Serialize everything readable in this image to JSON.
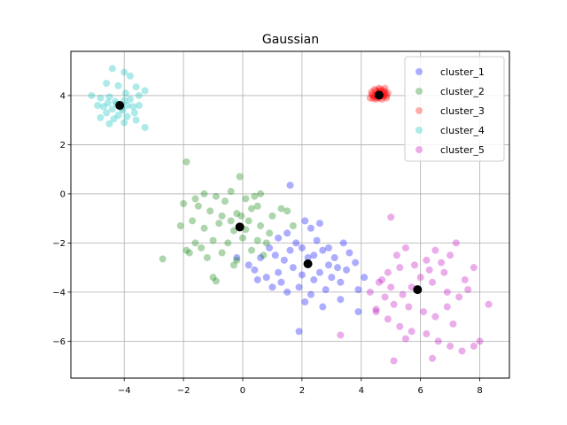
{
  "chart_data": {
    "type": "scatter",
    "title": "Gaussian",
    "xlabel": "",
    "ylabel": "",
    "xlim": [
      -5.8,
      9.0
    ],
    "ylim": [
      -7.5,
      5.8
    ],
    "xticks": [
      -4,
      -2,
      0,
      2,
      4,
      6,
      8
    ],
    "yticks": [
      -6,
      -4,
      -2,
      0,
      2,
      4
    ],
    "xtick_labels": [
      "−4",
      "−2",
      "0",
      "2",
      "4",
      "6",
      "8"
    ],
    "ytick_labels": [
      "−6",
      "−4",
      "−2",
      "0",
      "2",
      "4"
    ],
    "grid": true,
    "legend": "top-right",
    "series": [
      {
        "name": "cluster_1",
        "color": "#0000ff",
        "centroid": [
          2.2,
          -2.85
        ],
        "points": [
          [
            1.6,
            0.35
          ],
          [
            2.1,
            -1.1
          ],
          [
            2.3,
            -1.4
          ],
          [
            1.2,
            -1.8
          ],
          [
            1.5,
            -1.6
          ],
          [
            1.8,
            -2.0
          ],
          [
            2.0,
            -2.2
          ],
          [
            2.5,
            -1.9
          ],
          [
            2.7,
            -2.3
          ],
          [
            3.1,
            -2.6
          ],
          [
            3.4,
            -2.0
          ],
          [
            3.6,
            -2.4
          ],
          [
            3.2,
            -3.0
          ],
          [
            2.9,
            -2.9
          ],
          [
            2.6,
            -3.2
          ],
          [
            2.4,
            -3.5
          ],
          [
            2.0,
            -3.3
          ],
          [
            1.7,
            -3.0
          ],
          [
            1.4,
            -2.7
          ],
          [
            1.1,
            -2.5
          ],
          [
            0.9,
            -2.2
          ],
          [
            0.6,
            -2.6
          ],
          [
            0.4,
            -3.1
          ],
          [
            0.8,
            -3.4
          ],
          [
            1.3,
            -3.6
          ],
          [
            1.9,
            -3.8
          ],
          [
            2.3,
            -4.1
          ],
          [
            2.8,
            -3.9
          ],
          [
            3.0,
            -3.4
          ],
          [
            3.5,
            -3.1
          ],
          [
            3.8,
            -2.8
          ],
          [
            4.1,
            -3.4
          ],
          [
            3.9,
            -3.9
          ],
          [
            3.3,
            -4.3
          ],
          [
            2.7,
            -4.6
          ],
          [
            2.1,
            -4.4
          ],
          [
            1.5,
            -4.0
          ],
          [
            1.0,
            -3.8
          ],
          [
            0.5,
            -3.5
          ],
          [
            0.2,
            -2.9
          ],
          [
            -0.2,
            -2.6
          ],
          [
            2.6,
            -1.2
          ],
          [
            1.9,
            -5.6
          ],
          [
            3.9,
            -4.8
          ],
          [
            2.2,
            -2.6
          ],
          [
            2.4,
            -2.5
          ],
          [
            1.6,
            -2.3
          ],
          [
            2.9,
            -2.2
          ],
          [
            3.3,
            -3.6
          ],
          [
            1.2,
            -3.2
          ]
        ]
      },
      {
        "name": "cluster_2",
        "color": "#008000",
        "centroid": [
          -0.1,
          -1.35
        ],
        "points": [
          [
            -1.9,
            1.3
          ],
          [
            -0.1,
            0.7
          ],
          [
            -2.0,
            -0.4
          ],
          [
            -1.6,
            -0.2
          ],
          [
            -1.3,
            0.0
          ],
          [
            -0.9,
            -0.1
          ],
          [
            -0.6,
            -0.3
          ],
          [
            -0.4,
            0.1
          ],
          [
            0.1,
            -0.2
          ],
          [
            0.4,
            -0.1
          ],
          [
            0.6,
            0.0
          ],
          [
            0.3,
            -0.6
          ],
          [
            -0.2,
            -0.8
          ],
          [
            -0.7,
            -0.9
          ],
          [
            -1.1,
            -0.7
          ],
          [
            -1.5,
            -0.5
          ],
          [
            -1.7,
            -1.1
          ],
          [
            -1.3,
            -1.4
          ],
          [
            -0.8,
            -1.2
          ],
          [
            -0.3,
            -1.5
          ],
          [
            0.2,
            -1.1
          ],
          [
            0.6,
            -1.3
          ],
          [
            1.0,
            -0.9
          ],
          [
            1.3,
            -0.6
          ],
          [
            0.9,
            -1.6
          ],
          [
            0.5,
            -1.9
          ],
          [
            0.0,
            -1.8
          ],
          [
            -0.5,
            -2.0
          ],
          [
            -1.0,
            -1.9
          ],
          [
            -1.4,
            -2.2
          ],
          [
            -1.8,
            -2.4
          ],
          [
            -1.2,
            -2.6
          ],
          [
            -0.7,
            -2.4
          ],
          [
            -0.2,
            -2.7
          ],
          [
            0.3,
            -2.3
          ],
          [
            0.7,
            -2.5
          ],
          [
            -2.7,
            -2.65
          ],
          [
            -1.0,
            -3.4
          ],
          [
            -0.9,
            -3.55
          ],
          [
            -0.3,
            -2.9
          ],
          [
            1.5,
            -0.7
          ],
          [
            1.7,
            -1.3
          ],
          [
            -0.4,
            -1.1
          ],
          [
            0.1,
            -1.45
          ],
          [
            -1.9,
            -2.3
          ],
          [
            0.8,
            -2.0
          ],
          [
            -2.1,
            -1.3
          ],
          [
            -0.05,
            -0.9
          ],
          [
            -1.6,
            -2.0
          ],
          [
            0.5,
            -0.5
          ]
        ]
      },
      {
        "name": "cluster_3",
        "color": "#ff0000",
        "centroid": [
          4.6,
          4.02
        ],
        "points": [
          [
            4.35,
            4.15
          ],
          [
            4.45,
            3.95
          ],
          [
            4.5,
            4.2
          ],
          [
            4.55,
            4.05
          ],
          [
            4.6,
            3.9
          ],
          [
            4.65,
            4.25
          ],
          [
            4.7,
            4.1
          ],
          [
            4.75,
            3.95
          ],
          [
            4.8,
            4.15
          ],
          [
            4.85,
            4.0
          ],
          [
            4.4,
            4.0
          ],
          [
            4.5,
            3.85
          ],
          [
            4.6,
            4.3
          ],
          [
            4.7,
            3.85
          ],
          [
            4.8,
            4.3
          ],
          [
            4.3,
            3.9
          ],
          [
            4.9,
            4.1
          ],
          [
            4.55,
            4.15
          ],
          [
            4.65,
            3.98
          ],
          [
            4.45,
            4.25
          ],
          [
            4.75,
            4.2
          ],
          [
            4.35,
            4.05
          ],
          [
            4.85,
            3.9
          ],
          [
            4.6,
            4.1
          ],
          [
            4.5,
            4.0
          ],
          [
            4.7,
            4.0
          ],
          [
            4.4,
            3.88
          ],
          [
            4.8,
            4.05
          ],
          [
            4.55,
            3.92
          ],
          [
            4.65,
            4.18
          ]
        ]
      },
      {
        "name": "cluster_4",
        "color": "#00bfbf",
        "centroid": [
          -4.15,
          3.6
        ],
        "points": [
          [
            -4.4,
            5.1
          ],
          [
            -4.0,
            4.95
          ],
          [
            -3.8,
            4.8
          ],
          [
            -4.6,
            4.5
          ],
          [
            -4.2,
            4.4
          ],
          [
            -3.6,
            4.35
          ],
          [
            -5.1,
            4.0
          ],
          [
            -4.8,
            3.9
          ],
          [
            -4.5,
            3.95
          ],
          [
            -3.3,
            4.2
          ],
          [
            -3.5,
            4.0
          ],
          [
            -4.3,
            3.75
          ],
          [
            -4.0,
            3.8
          ],
          [
            -3.9,
            3.6
          ],
          [
            -4.1,
            3.5
          ],
          [
            -4.4,
            3.45
          ],
          [
            -4.7,
            3.55
          ],
          [
            -3.7,
            3.55
          ],
          [
            -3.5,
            3.6
          ],
          [
            -4.6,
            3.3
          ],
          [
            -4.2,
            3.2
          ],
          [
            -3.9,
            3.15
          ],
          [
            -4.8,
            3.1
          ],
          [
            -3.6,
            3.0
          ],
          [
            -4.0,
            2.9
          ],
          [
            -4.5,
            2.85
          ],
          [
            -3.3,
            2.7
          ],
          [
            -4.9,
            3.6
          ],
          [
            -4.25,
            3.65
          ],
          [
            -4.05,
            3.4
          ],
          [
            -3.8,
            3.85
          ],
          [
            -4.55,
            3.7
          ],
          [
            -3.95,
            4.1
          ],
          [
            -4.35,
            3.05
          ],
          [
            -3.65,
            3.3
          ]
        ]
      },
      {
        "name": "cluster_5",
        "color": "#bf00bf",
        "centroid": [
          5.9,
          -3.9
        ],
        "points": [
          [
            5.0,
            -0.95
          ],
          [
            5.5,
            -2.2
          ],
          [
            6.5,
            -2.3
          ],
          [
            7.2,
            -2.0
          ],
          [
            7.0,
            -2.5
          ],
          [
            6.2,
            -2.7
          ],
          [
            5.8,
            -2.9
          ],
          [
            5.3,
            -3.0
          ],
          [
            4.9,
            -3.2
          ],
          [
            4.6,
            -3.6
          ],
          [
            4.3,
            -4.0
          ],
          [
            4.8,
            -4.2
          ],
          [
            5.1,
            -4.5
          ],
          [
            5.6,
            -4.6
          ],
          [
            6.1,
            -4.8
          ],
          [
            6.5,
            -5.0
          ],
          [
            6.9,
            -4.6
          ],
          [
            7.3,
            -4.2
          ],
          [
            7.6,
            -3.9
          ],
          [
            7.8,
            -3.0
          ],
          [
            7.5,
            -3.5
          ],
          [
            6.8,
            -3.2
          ],
          [
            6.4,
            -3.6
          ],
          [
            6.0,
            -3.4
          ],
          [
            5.7,
            -3.8
          ],
          [
            5.4,
            -4.1
          ],
          [
            5.0,
            -3.8
          ],
          [
            4.5,
            -4.7
          ],
          [
            4.9,
            -5.1
          ],
          [
            5.3,
            -5.4
          ],
          [
            5.7,
            -5.6
          ],
          [
            6.2,
            -5.7
          ],
          [
            6.6,
            -6.0
          ],
          [
            7.0,
            -6.2
          ],
          [
            7.4,
            -6.4
          ],
          [
            7.8,
            -6.2
          ],
          [
            8.0,
            -6.0
          ],
          [
            8.3,
            -4.5
          ],
          [
            5.1,
            -6.8
          ],
          [
            6.4,
            -6.7
          ],
          [
            4.5,
            -4.8
          ],
          [
            5.5,
            -5.9
          ],
          [
            6.9,
            -4.0
          ],
          [
            6.3,
            -3.1
          ],
          [
            5.9,
            -3.9
          ],
          [
            4.7,
            -3.5
          ],
          [
            3.3,
            -5.75
          ],
          [
            7.1,
            -5.3
          ],
          [
            6.7,
            -2.8
          ],
          [
            5.2,
            -2.5
          ]
        ]
      }
    ]
  }
}
